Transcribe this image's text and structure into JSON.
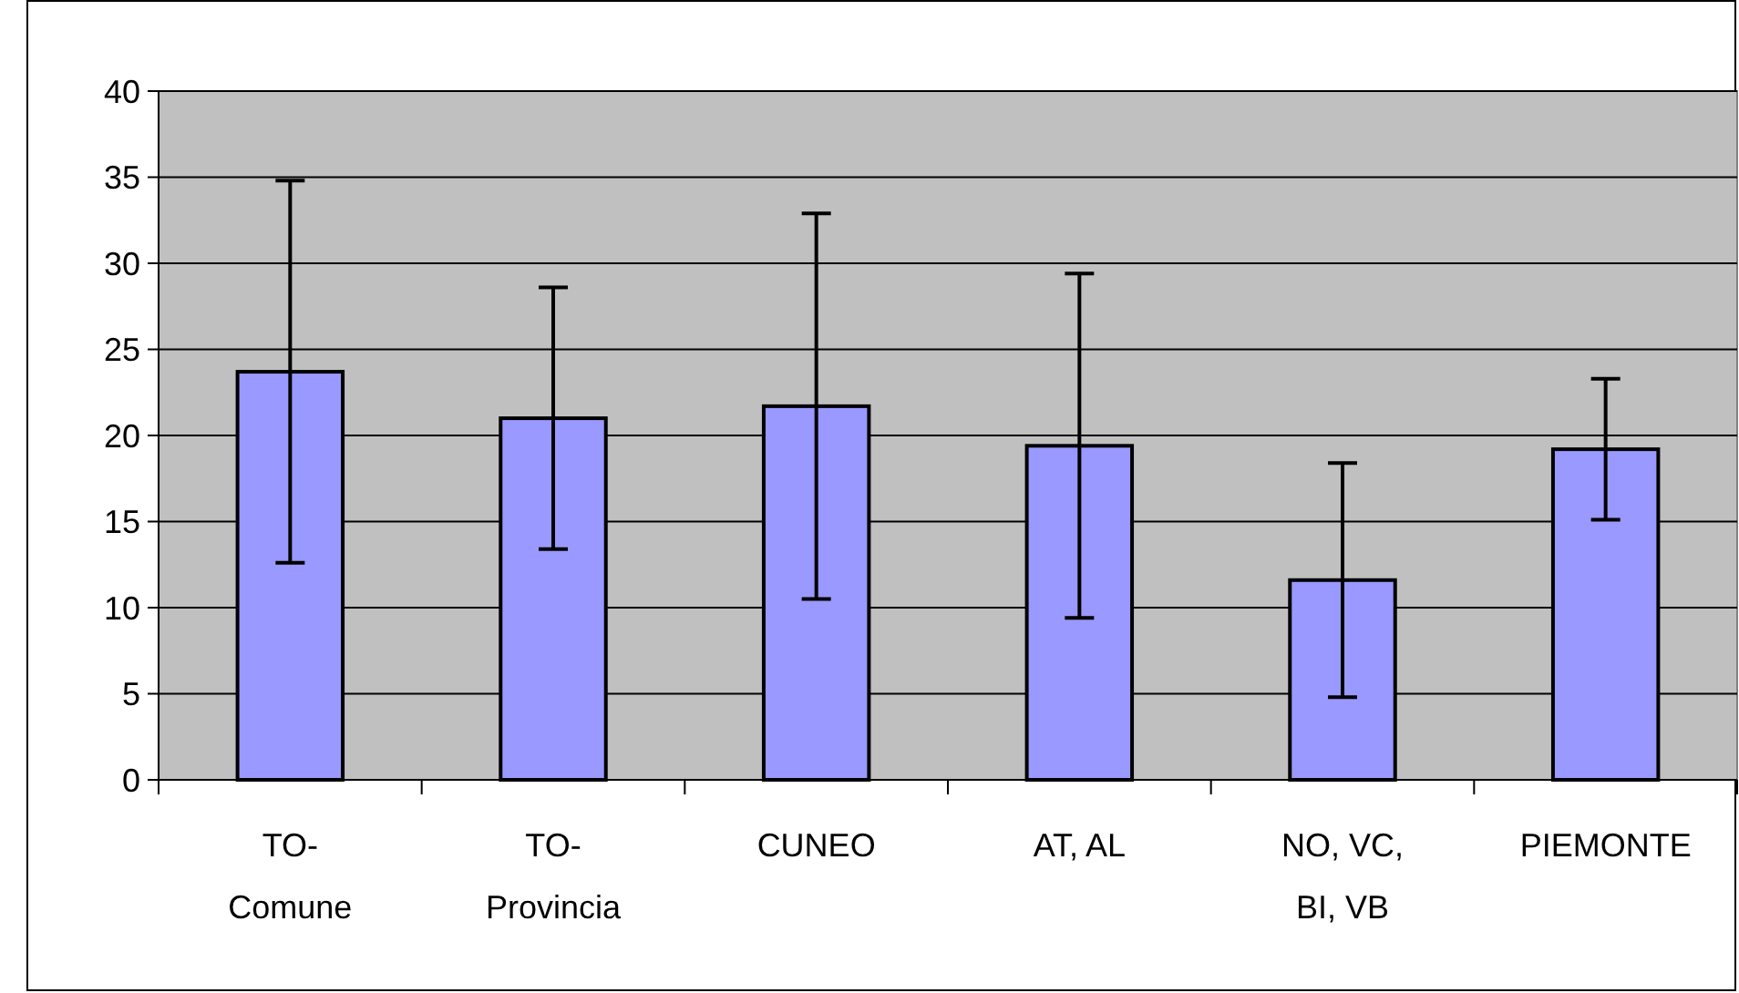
{
  "chart_data": {
    "type": "bar",
    "categories": [
      "TO-Comune",
      "TO-Provincia",
      "CUNEO",
      "AT, AL",
      "NO, VC, BI, VB",
      "PIEMONTE"
    ],
    "values": [
      23.7,
      21.0,
      21.7,
      19.4,
      11.6,
      19.2
    ],
    "errors": [
      11.1,
      7.6,
      11.2,
      10.0,
      6.8,
      4.1
    ],
    "color": "#9999ff",
    "ylim": [
      0,
      40
    ],
    "yticks": [
      0,
      5,
      10,
      15,
      20,
      25,
      30,
      35,
      40
    ],
    "grid": "y"
  }
}
